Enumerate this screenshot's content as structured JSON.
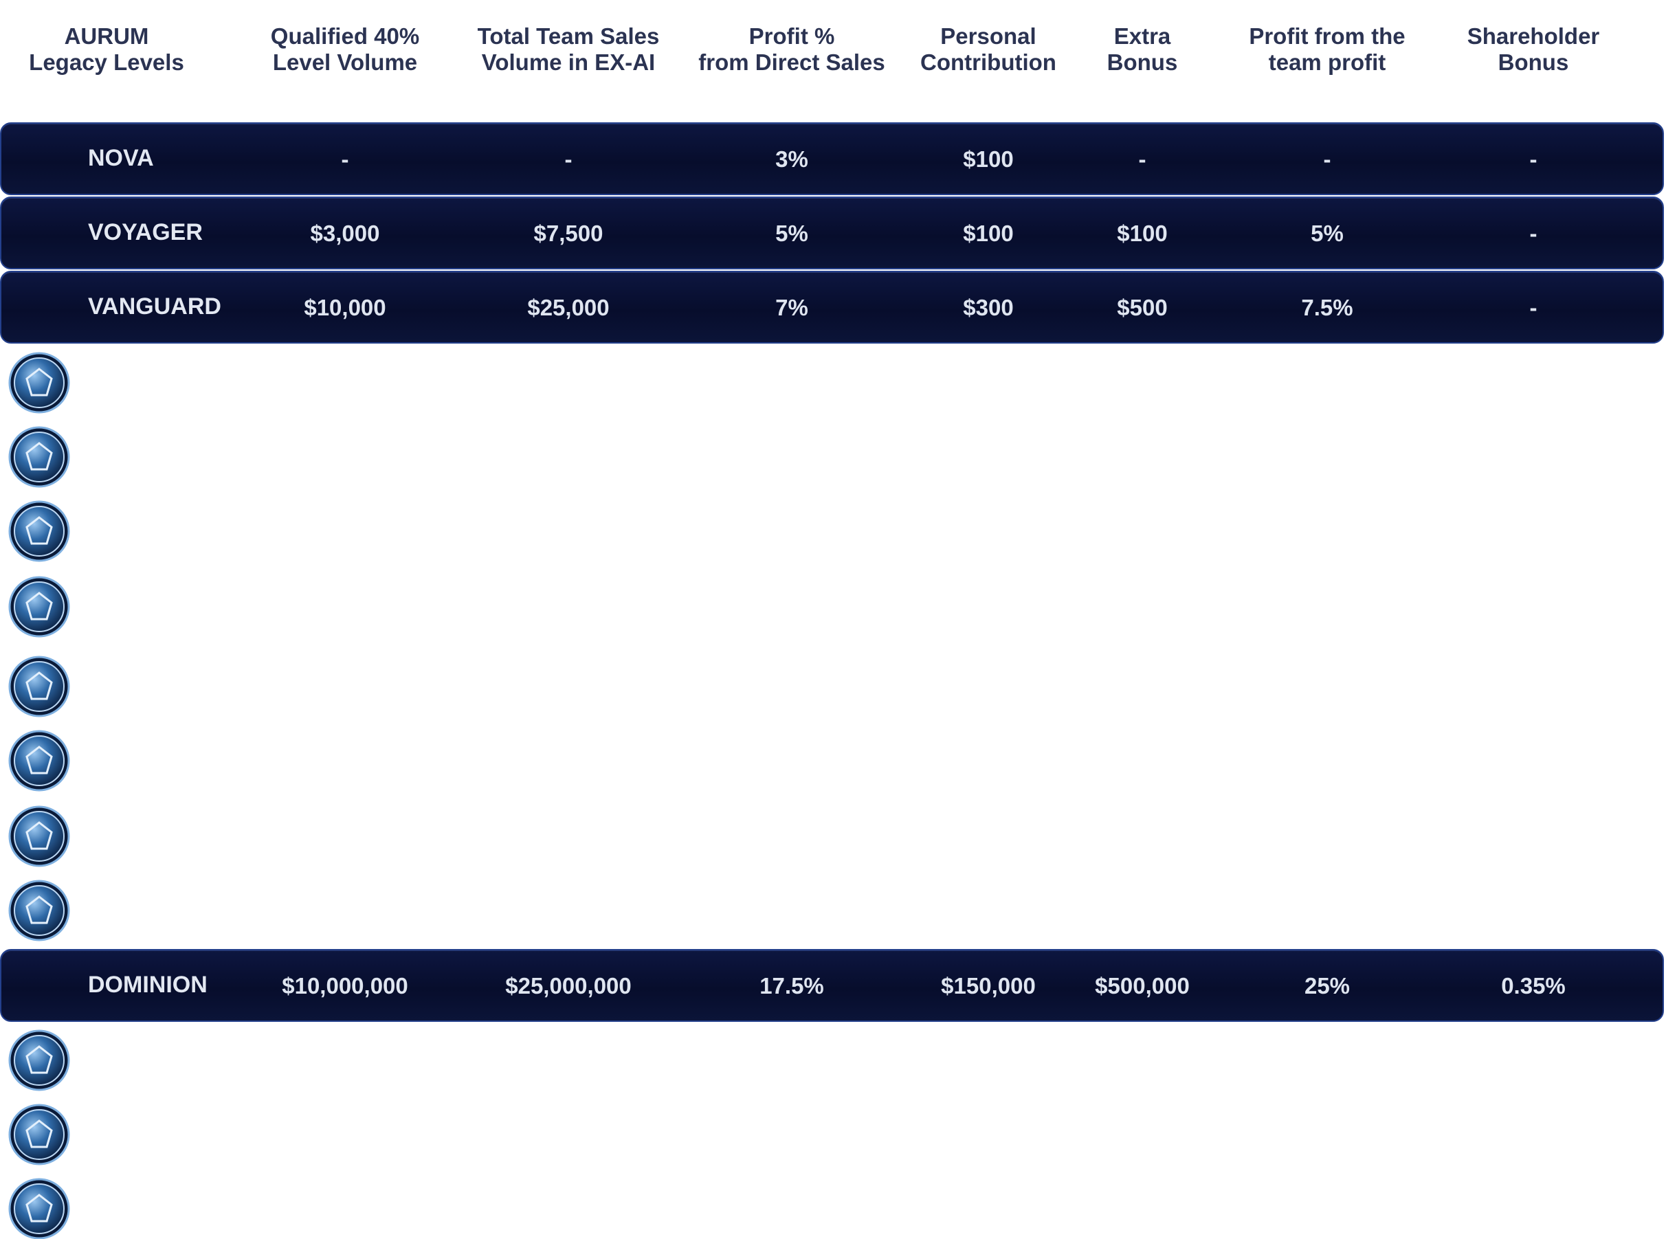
{
  "header": {
    "columns": [
      [
        "AURUM",
        "Legacy Levels"
      ],
      [
        "Qualified 40%",
        "Level Volume"
      ],
      [
        "Total Team Sales",
        "Volume in EX-AI"
      ],
      [
        "Profit %",
        "from Direct Sales"
      ],
      [
        "Personal",
        "Contribution"
      ],
      [
        "Extra",
        "Bonus"
      ],
      [
        "Profit from the",
        "team profit"
      ],
      [
        "Shareholder",
        "Bonus"
      ]
    ]
  },
  "table": {
    "rows": [
      [
        "NOVA",
        "-",
        "-",
        "3%",
        "$100",
        "-",
        "-",
        "-"
      ],
      [
        "VOYAGER",
        "$3,000",
        "$7,500",
        "5%",
        "$100",
        "$100",
        "5%",
        "-"
      ],
      [
        "VANGUARD",
        "$10,000",
        "$25,000",
        "7%",
        "$300",
        "$500",
        "7.5%",
        "-"
      ],
      [
        "DOMINION",
        "$10,000,000",
        "$25,000,000",
        "17.5%",
        "$150,000",
        "$500,000",
        "25%",
        "0.35%"
      ]
    ]
  }
}
